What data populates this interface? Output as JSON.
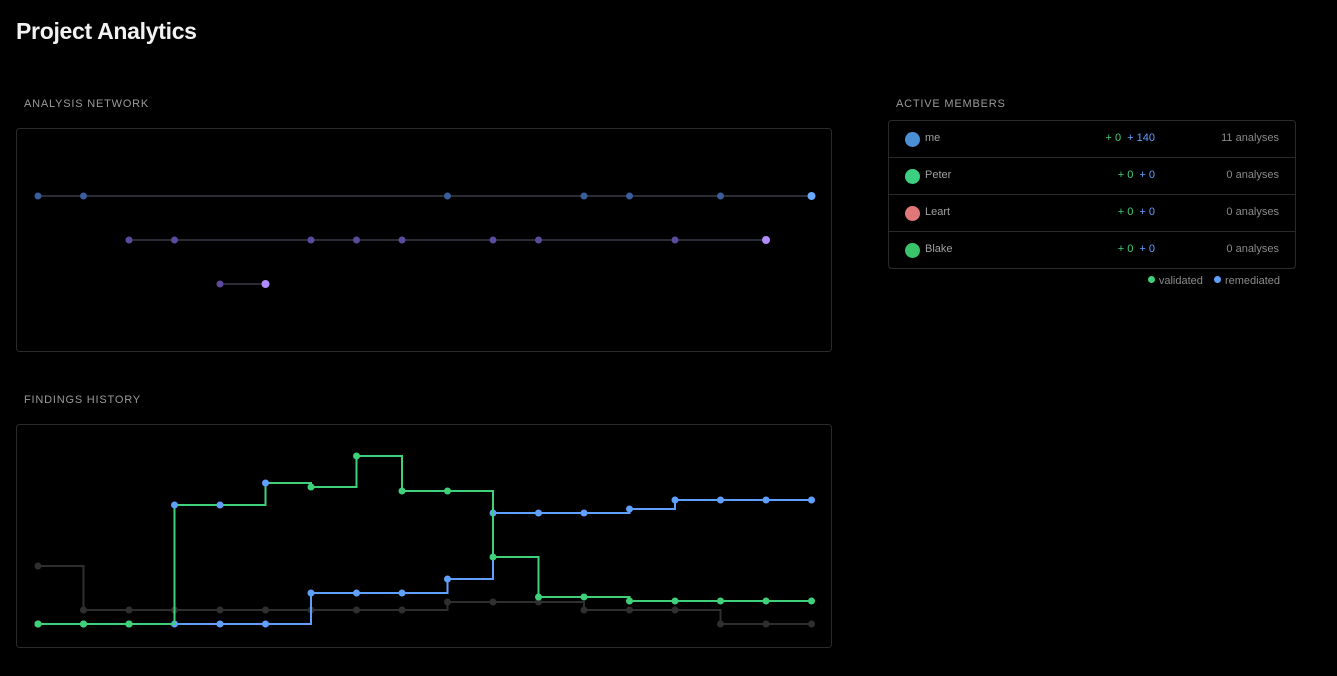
{
  "header": {
    "title": "Project Analytics"
  },
  "analysis_network": {
    "label": "ANALYSIS NETWORK",
    "colors": {
      "line": "#2c2c34",
      "node_blue": "#3a5d9c",
      "node_purple": "#5b4a9e",
      "head_blue": "#6aa8ff",
      "head_purple": "#b08cff"
    }
  },
  "findings_history": {
    "label": "FINDINGS HISTORY",
    "colors": {
      "validated": "#3fd07a",
      "remediated": "#5fa0ff",
      "baseline": "#2f2f2f"
    }
  },
  "members": {
    "label": "ACTIVE MEMBERS",
    "rows": [
      {
        "name": "me",
        "validated": "+ 0",
        "remediated": "+ 140",
        "analyses": "11 analyses",
        "avatar_color": "#4b8fd6"
      },
      {
        "name": "Peter",
        "validated": "+ 0",
        "remediated": "+ 0",
        "analyses": "0 analyses",
        "avatar_color": "#3ccf82"
      },
      {
        "name": "Leart",
        "validated": "+ 0",
        "remediated": "+ 0",
        "analyses": "0 analyses",
        "avatar_color": "#e0787a"
      },
      {
        "name": "Blake",
        "validated": "+ 0",
        "remediated": "+ 0",
        "analyses": "0 analyses",
        "avatar_color": "#39c46a"
      }
    ],
    "legend": {
      "validated": "validated",
      "remediated": "remediated"
    }
  }
}
